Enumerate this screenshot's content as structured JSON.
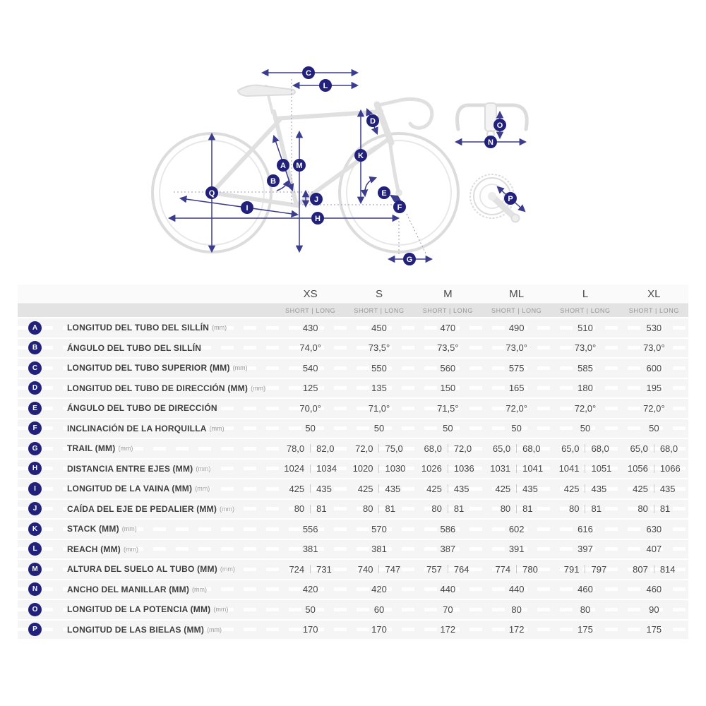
{
  "colors": {
    "badge_navy": "#21217b",
    "arrow_navy": "#3c3c8e",
    "guide_dash": "#9898b4",
    "bike_gray": "#dcdcdc",
    "row_bg": "#f5f5f5",
    "subheader_bg": "#e3e3e3"
  },
  "diagram": {
    "badges": {
      "a": "A",
      "b": "B",
      "c": "C",
      "d": "D",
      "e": "E",
      "f": "F",
      "g": "G",
      "h": "H",
      "i": "I",
      "j": "J",
      "k": "K",
      "l": "L",
      "m": "M",
      "n": "N",
      "o": "O",
      "p": "P",
      "q": "Q"
    }
  },
  "table": {
    "sizes": [
      "XS",
      "S",
      "M",
      "ML",
      "L",
      "XL"
    ],
    "sub_header": "SHORT | LONG",
    "rows": [
      {
        "letter": "A",
        "label": "LONGITUD DEL TUBO DEL SILLÍN",
        "unit": "(mm)",
        "values": [
          [
            "430"
          ],
          [
            "450"
          ],
          [
            "470"
          ],
          [
            "490"
          ],
          [
            "510"
          ],
          [
            "530"
          ]
        ]
      },
      {
        "letter": "B",
        "label": "ÁNGULO DEL TUBO DEL SILLÍN",
        "unit": "",
        "values": [
          [
            "74,0°"
          ],
          [
            "73,5°"
          ],
          [
            "73,5°"
          ],
          [
            "73,0°"
          ],
          [
            "73,0°"
          ],
          [
            "73,0°"
          ]
        ]
      },
      {
        "letter": "C",
        "label": "LONGITUD DEL TUBO SUPERIOR (MM)",
        "unit": "(mm)",
        "values": [
          [
            "540"
          ],
          [
            "550"
          ],
          [
            "560"
          ],
          [
            "575"
          ],
          [
            "585"
          ],
          [
            "600"
          ]
        ]
      },
      {
        "letter": "D",
        "label": "LONGITUD DEL TUBO DE DIRECCIÓN (MM)",
        "unit": "(mm)",
        "values": [
          [
            "125"
          ],
          [
            "135"
          ],
          [
            "150"
          ],
          [
            "165"
          ],
          [
            "180"
          ],
          [
            "195"
          ]
        ]
      },
      {
        "letter": "E",
        "label": "ÁNGULO DEL TUBO DE DIRECCIÓN",
        "unit": "",
        "values": [
          [
            "70,0°"
          ],
          [
            "71,0°"
          ],
          [
            "71,5°"
          ],
          [
            "72,0°"
          ],
          [
            "72,0°"
          ],
          [
            "72,0°"
          ]
        ]
      },
      {
        "letter": "F",
        "label": "INCLINACIÓN DE LA HORQUILLA",
        "unit": "(mm)",
        "values": [
          [
            "50"
          ],
          [
            "50"
          ],
          [
            "50"
          ],
          [
            "50"
          ],
          [
            "50"
          ],
          [
            "50"
          ]
        ]
      },
      {
        "letter": "G",
        "label": "TRAIL (MM)",
        "unit": "(mm)",
        "values": [
          [
            "78,0",
            "82,0"
          ],
          [
            "72,0",
            "75,0"
          ],
          [
            "68,0",
            "72,0"
          ],
          [
            "65,0",
            "68,0"
          ],
          [
            "65,0",
            "68,0"
          ],
          [
            "65,0",
            "68,0"
          ]
        ]
      },
      {
        "letter": "H",
        "label": "DISTANCIA ENTRE EJES (MM)",
        "unit": "(mm)",
        "values": [
          [
            "1024",
            "1034"
          ],
          [
            "1020",
            "1030"
          ],
          [
            "1026",
            "1036"
          ],
          [
            "1031",
            "1041"
          ],
          [
            "1041",
            "1051"
          ],
          [
            "1056",
            "1066"
          ]
        ]
      },
      {
        "letter": "I",
        "label": "LONGITUD DE LA VAINA (MM)",
        "unit": "(mm)",
        "values": [
          [
            "425",
            "435"
          ],
          [
            "425",
            "435"
          ],
          [
            "425",
            "435"
          ],
          [
            "425",
            "435"
          ],
          [
            "425",
            "435"
          ],
          [
            "425",
            "435"
          ]
        ]
      },
      {
        "letter": "J",
        "label": "CAÍDA DEL EJE DE PEDALIER (MM)",
        "unit": "(mm)",
        "values": [
          [
            "80",
            "81"
          ],
          [
            "80",
            "81"
          ],
          [
            "80",
            "81"
          ],
          [
            "80",
            "81"
          ],
          [
            "80",
            "81"
          ],
          [
            "80",
            "81"
          ]
        ]
      },
      {
        "letter": "K",
        "label": "STACK (MM)",
        "unit": "(mm)",
        "values": [
          [
            "556"
          ],
          [
            "570"
          ],
          [
            "586"
          ],
          [
            "602"
          ],
          [
            "616"
          ],
          [
            "630"
          ]
        ]
      },
      {
        "letter": "L",
        "label": "REACH (MM)",
        "unit": "(mm)",
        "values": [
          [
            "381"
          ],
          [
            "381"
          ],
          [
            "387"
          ],
          [
            "391"
          ],
          [
            "397"
          ],
          [
            "407"
          ]
        ]
      },
      {
        "letter": "M",
        "label": "ALTURA DEL SUELO AL TUBO (MM)",
        "unit": "(mm)",
        "values": [
          [
            "724",
            "731"
          ],
          [
            "740",
            "747"
          ],
          [
            "757",
            "764"
          ],
          [
            "774",
            "780"
          ],
          [
            "791",
            "797"
          ],
          [
            "807",
            "814"
          ]
        ]
      },
      {
        "letter": "N",
        "label": "ANCHO DEL MANILLAR (MM)",
        "unit": "(mm)",
        "values": [
          [
            "420"
          ],
          [
            "420"
          ],
          [
            "440"
          ],
          [
            "440"
          ],
          [
            "460"
          ],
          [
            "460"
          ]
        ]
      },
      {
        "letter": "O",
        "label": "LONGITUD DE LA POTENCIA (MM)",
        "unit": "(mm)",
        "values": [
          [
            "50"
          ],
          [
            "60"
          ],
          [
            "70"
          ],
          [
            "80"
          ],
          [
            "80"
          ],
          [
            "90"
          ]
        ]
      },
      {
        "letter": "P",
        "label": "LONGITUD DE LAS BIELAS (MM)",
        "unit": "(mm)",
        "values": [
          [
            "170"
          ],
          [
            "170"
          ],
          [
            "172"
          ],
          [
            "172"
          ],
          [
            "175"
          ],
          [
            "175"
          ]
        ]
      }
    ]
  }
}
